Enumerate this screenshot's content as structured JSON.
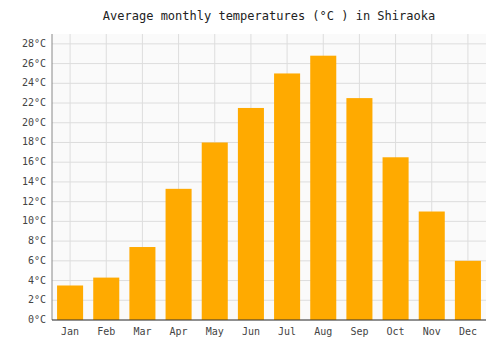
{
  "chart_data": {
    "type": "bar",
    "title": "Average monthly temperatures (°C ) in Shiraoka",
    "categories": [
      "Jan",
      "Feb",
      "Mar",
      "Apr",
      "May",
      "Jun",
      "Jul",
      "Aug",
      "Sep",
      "Oct",
      "Nov",
      "Dec"
    ],
    "values": [
      3.5,
      4.3,
      7.4,
      13.3,
      18.0,
      21.5,
      25.0,
      26.8,
      22.5,
      16.5,
      11.0,
      6.0
    ],
    "color": "#FFAA00",
    "ylim": [
      0,
      29
    ],
    "yticks": [
      {
        "value": 0,
        "label": "0°C"
      },
      {
        "value": 2,
        "label": "2°C"
      },
      {
        "value": 4,
        "label": "4°C"
      },
      {
        "value": 6,
        "label": "6°C"
      },
      {
        "value": 8,
        "label": "8°C"
      },
      {
        "value": 10,
        "label": "10°C"
      },
      {
        "value": 12,
        "label": "12°C"
      },
      {
        "value": 14,
        "label": "14°C"
      },
      {
        "value": 16,
        "label": "16°C"
      },
      {
        "value": 18,
        "label": "18°C"
      },
      {
        "value": 20,
        "label": "20°C"
      },
      {
        "value": 22,
        "label": "22°C"
      },
      {
        "value": 24,
        "label": "24°C"
      },
      {
        "value": 26,
        "label": "26°C"
      },
      {
        "value": 28,
        "label": "28°C"
      }
    ],
    "grid": true
  }
}
